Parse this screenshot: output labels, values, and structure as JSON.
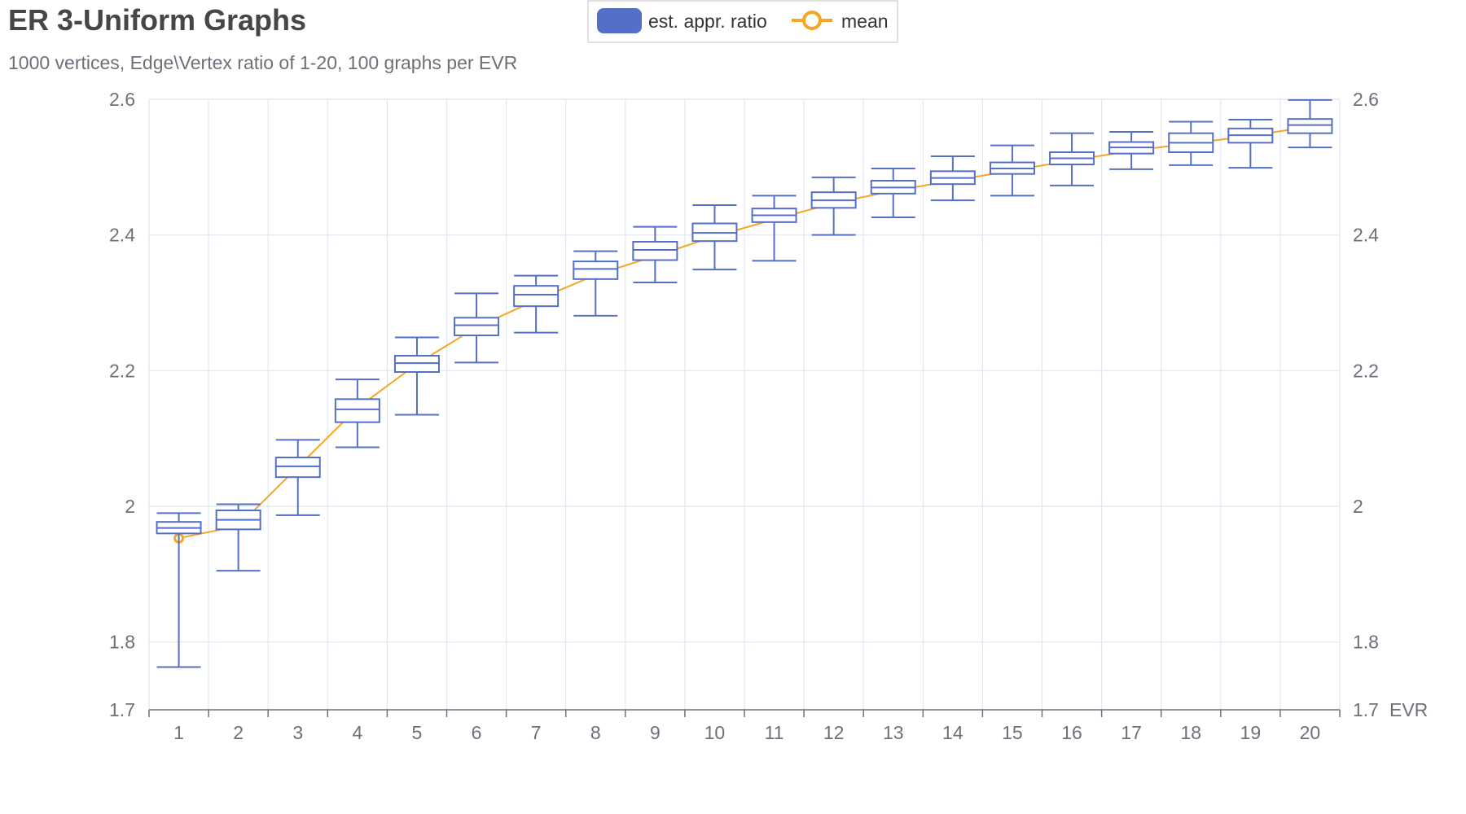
{
  "chart_data": {
    "type": "boxplot",
    "title": "ER 3-Uniform Graphs",
    "subtitle": "1000 vertices, Edge\\Vertex ratio of 1-20, 100 graphs per EVR",
    "xlabel": "EVR",
    "ylabel": "",
    "categories": [
      "1",
      "2",
      "3",
      "4",
      "5",
      "6",
      "7",
      "8",
      "9",
      "10",
      "11",
      "12",
      "13",
      "14",
      "15",
      "16",
      "17",
      "18",
      "19",
      "20"
    ],
    "ylim": [
      1.7,
      2.6
    ],
    "yticks": [
      {
        "value": 1.7,
        "label": "1.7"
      },
      {
        "value": 1.8,
        "label": "1.8"
      },
      {
        "value": 2.0,
        "label": "2"
      },
      {
        "value": 2.2,
        "label": "2.2"
      },
      {
        "value": 2.4,
        "label": "2.4"
      },
      {
        "value": 2.6,
        "label": "2.6"
      }
    ],
    "grid": true,
    "right_axis_mirrors_left": true,
    "legend_position": "top-center",
    "legend": [
      {
        "name": "est. appr. ratio",
        "symbol": "rounded-rect"
      },
      {
        "name": "mean",
        "symbol": "line-circle"
      }
    ],
    "colors": {
      "box": "#5470c6",
      "mean": "#f5a623",
      "grid": "#e0e6f1",
      "axis": "#6e7079",
      "title": "#464646",
      "subtitle": "#6e7079"
    },
    "series": [
      {
        "name": "est. appr. ratio",
        "type": "boxplot",
        "boxes": [
          {
            "min": 1.763,
            "q1": 1.96,
            "median": 1.968,
            "q3": 1.977,
            "max": 1.99
          },
          {
            "min": 1.905,
            "q1": 1.966,
            "median": 1.98,
            "q3": 1.994,
            "max": 2.003
          },
          {
            "min": 1.987,
            "q1": 2.043,
            "median": 2.059,
            "q3": 2.072,
            "max": 2.098
          },
          {
            "min": 2.087,
            "q1": 2.124,
            "median": 2.143,
            "q3": 2.158,
            "max": 2.187
          },
          {
            "min": 2.135,
            "q1": 2.198,
            "median": 2.211,
            "q3": 2.222,
            "max": 2.249
          },
          {
            "min": 2.212,
            "q1": 2.252,
            "median": 2.267,
            "q3": 2.278,
            "max": 2.314
          },
          {
            "min": 2.256,
            "q1": 2.295,
            "median": 2.312,
            "q3": 2.325,
            "max": 2.34
          },
          {
            "min": 2.281,
            "q1": 2.335,
            "median": 2.35,
            "q3": 2.361,
            "max": 2.376
          },
          {
            "min": 2.33,
            "q1": 2.363,
            "median": 2.378,
            "q3": 2.39,
            "max": 2.412
          },
          {
            "min": 2.349,
            "q1": 2.391,
            "median": 2.403,
            "q3": 2.417,
            "max": 2.444
          },
          {
            "min": 2.362,
            "q1": 2.419,
            "median": 2.429,
            "q3": 2.439,
            "max": 2.458
          },
          {
            "min": 2.4,
            "q1": 2.44,
            "median": 2.451,
            "q3": 2.463,
            "max": 2.485
          },
          {
            "min": 2.426,
            "q1": 2.461,
            "median": 2.47,
            "q3": 2.48,
            "max": 2.498
          },
          {
            "min": 2.451,
            "q1": 2.475,
            "median": 2.484,
            "q3": 2.494,
            "max": 2.516
          },
          {
            "min": 2.458,
            "q1": 2.49,
            "median": 2.498,
            "q3": 2.507,
            "max": 2.532
          },
          {
            "min": 2.473,
            "q1": 2.504,
            "median": 2.513,
            "q3": 2.522,
            "max": 2.55
          },
          {
            "min": 2.497,
            "q1": 2.52,
            "median": 2.529,
            "q3": 2.537,
            "max": 2.552
          },
          {
            "min": 2.503,
            "q1": 2.522,
            "median": 2.536,
            "q3": 2.55,
            "max": 2.567
          },
          {
            "min": 2.499,
            "q1": 2.536,
            "median": 2.547,
            "q3": 2.557,
            "max": 2.57
          },
          {
            "min": 2.529,
            "q1": 2.55,
            "median": 2.562,
            "q3": 2.571,
            "max": 2.599
          }
        ]
      },
      {
        "name": "mean",
        "type": "line",
        "values": [
          1.953,
          1.971,
          2.058,
          2.145,
          2.21,
          2.264,
          2.304,
          2.341,
          2.369,
          2.398,
          2.423,
          2.447,
          2.465,
          2.48,
          2.495,
          2.51,
          2.524,
          2.535,
          2.546,
          2.56
        ]
      }
    ]
  }
}
